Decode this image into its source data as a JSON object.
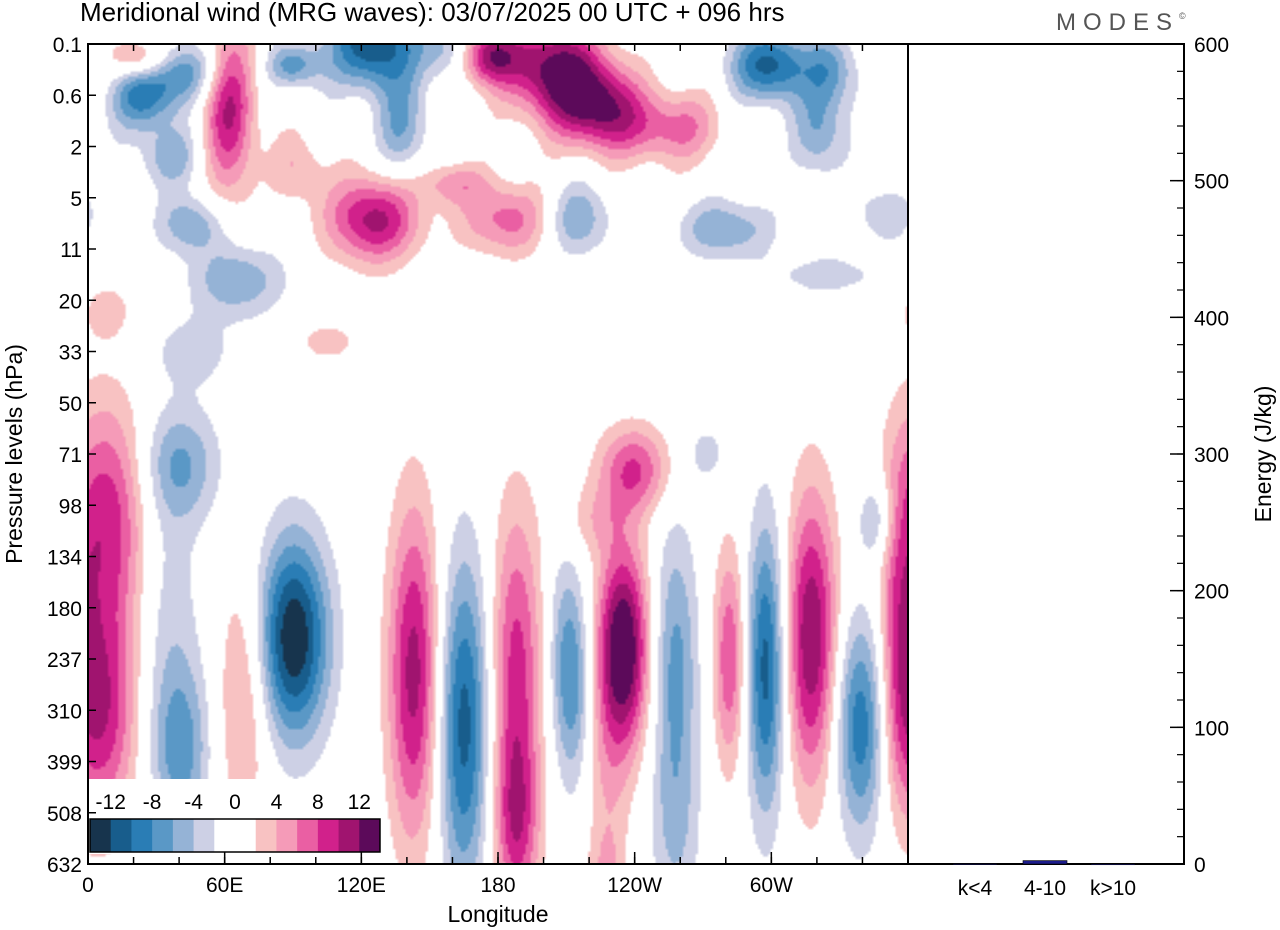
{
  "title": "Meridional wind (MRG waves):  03/07/2025  00 UTC  + 096 hrs",
  "logo": "MODES",
  "colors": {
    "neg": [
      "#17344d",
      "#185d8c",
      "#2a7db5",
      "#5a98c6",
      "#95b3d6",
      "#cdd0e5"
    ],
    "zero": "#ffffff",
    "pos": [
      "#f8c2c2",
      "#f59bb8",
      "#ea5fa3",
      "#d1218b",
      "#a0146f",
      "#5c0a5a"
    ],
    "bar": "#1c1c8c"
  },
  "chart_data": [
    {
      "type": "heatmap",
      "title": "Meridional wind (MRG waves)",
      "xlabel": "Longitude",
      "ylabel": "Pressure levels (hPa)",
      "x_ticks": [
        "0",
        "60E",
        "120E",
        "180",
        "120W",
        "60W"
      ],
      "x_tick_lon": [
        0,
        60,
        120,
        180,
        240,
        300
      ],
      "xlim": [
        0,
        360
      ],
      "y_ticks": [
        "0.1",
        "0.6",
        "2",
        "5",
        "11",
        "20",
        "33",
        "50",
        "71",
        "98",
        "134",
        "180",
        "237",
        "310",
        "399",
        "508",
        "632"
      ],
      "colorbar": {
        "labels": [
          "-12",
          "-8",
          "-4",
          "0",
          "4",
          "8",
          "12"
        ],
        "label_values": [
          -12,
          -8,
          -4,
          0,
          4,
          8,
          12
        ],
        "levels": [
          -14,
          -12,
          -10,
          -8,
          -6,
          -4,
          -2,
          2,
          4,
          6,
          8,
          10,
          12,
          14
        ]
      },
      "blobs": [
        {
          "lon": 40,
          "lev": 0.5,
          "v": -7,
          "wl": 12,
          "wv": 0.4
        },
        {
          "lon": 24,
          "lev": 1.0,
          "v": -9,
          "wl": 10,
          "wv": 0.5
        },
        {
          "lon": 62,
          "lev": 1.3,
          "v": 10,
          "wl": 8,
          "wv": 1.2
        },
        {
          "lon": 125,
          "lev": 0.0,
          "v": -12,
          "wl": 14,
          "wv": 0.6
        },
        {
          "lon": 138,
          "lev": 1.6,
          "v": -6,
          "wl": 8,
          "wv": 0.7
        },
        {
          "lon": 160,
          "lev": 0.1,
          "v": -6,
          "wl": 9,
          "wv": 0.4
        },
        {
          "lon": 205,
          "lev": 0.5,
          "v": 13,
          "wl": 14,
          "wv": 0.7
        },
        {
          "lon": 225,
          "lev": 1.2,
          "v": 11,
          "wl": 12,
          "wv": 0.6
        },
        {
          "lon": 175,
          "lev": 0.2,
          "v": 12,
          "wl": 10,
          "wv": 0.4
        },
        {
          "lon": 255,
          "lev": 1.6,
          "v": 7,
          "wl": 16,
          "wv": 0.5
        },
        {
          "lon": 300,
          "lev": 0.4,
          "v": -11,
          "wl": 12,
          "wv": 0.5
        },
        {
          "lon": 327,
          "lev": 0.5,
          "v": -6,
          "wl": 8,
          "wv": 0.5
        },
        {
          "lon": 322,
          "lev": 1.7,
          "v": -6,
          "wl": 8,
          "wv": 0.6
        },
        {
          "lon": 36,
          "lev": 2.2,
          "v": -5,
          "wl": 10,
          "wv": 0.4
        },
        {
          "lon": 23,
          "lev": 0.3,
          "v": 8,
          "wl": 9,
          "wv": 0.3
        },
        {
          "lon": 90,
          "lev": 0.4,
          "v": -7,
          "wl": 8,
          "wv": 0.3
        },
        {
          "lon": 92,
          "lev": 2.4,
          "v": 4,
          "wl": 8,
          "wv": 0.5
        },
        {
          "lon": 125,
          "lev": 3.4,
          "v": 11,
          "wl": 14,
          "wv": 0.6
        },
        {
          "lon": 160,
          "lev": 2.7,
          "v": 5,
          "wl": 10,
          "wv": 0.3
        },
        {
          "lon": 184,
          "lev": 3.4,
          "v": 7,
          "wl": 14,
          "wv": 0.5
        },
        {
          "lon": 215,
          "lev": 3.4,
          "v": -6,
          "wl": 10,
          "wv": 0.5
        },
        {
          "lon": 280,
          "lev": 3.6,
          "v": -6,
          "wl": 14,
          "wv": 0.4
        },
        {
          "lon": 65,
          "lev": 4.6,
          "v": -6,
          "wl": 14,
          "wv": 0.5
        },
        {
          "lon": 45,
          "lev": 3.5,
          "v": -6,
          "wl": 10,
          "wv": 0.4
        },
        {
          "lon": 350,
          "lev": 3.3,
          "v": -4,
          "wl": 8,
          "wv": 0.4
        },
        {
          "lon": 325,
          "lev": 4.5,
          "v": -3,
          "wl": 20,
          "wv": 0.3
        },
        {
          "lon": 8,
          "lev": 5.2,
          "v": 3,
          "wl": 8,
          "wv": 0.4
        },
        {
          "lon": 105,
          "lev": 5.8,
          "v": 3,
          "wl": 10,
          "wv": 0.3
        },
        {
          "lon": 45,
          "lev": 6.0,
          "v": -3,
          "wl": 14,
          "wv": 0.5
        },
        {
          "lon": 40,
          "lev": 8.2,
          "v": -6,
          "wl": 12,
          "wv": 0.8
        },
        {
          "lon": 240,
          "lev": 8.3,
          "v": 8,
          "wl": 11,
          "wv": 0.6
        },
        {
          "lon": 222,
          "lev": 9.3,
          "v": 3,
          "wl": 10,
          "wv": 0.5
        },
        {
          "lon": 272,
          "lev": 8.0,
          "v": -3,
          "wl": 6,
          "wv": 0.4
        },
        {
          "lon": 8,
          "lev": 9.2,
          "v": 9,
          "wl": 12,
          "wv": 1.6
        },
        {
          "lon": 5,
          "lev": 13.0,
          "v": 10,
          "wl": 11,
          "wv": 1.6
        },
        {
          "lon": 40,
          "lev": 13.8,
          "v": -7,
          "wl": 9,
          "wv": 1.2
        },
        {
          "lon": 35,
          "lev": 11.0,
          "v": -3,
          "wl": 10,
          "wv": 1.8
        },
        {
          "lon": 68,
          "lev": 12.8,
          "v": 5,
          "wl": 8,
          "wv": 1.8
        },
        {
          "lon": 90,
          "lev": 11.6,
          "v": -14,
          "wl": 11,
          "wv": 1.4
        },
        {
          "lon": 143,
          "lev": 12.3,
          "v": 11,
          "wl": 8,
          "wv": 2.3
        },
        {
          "lon": 165,
          "lev": 13.3,
          "v": -11,
          "wl": 8,
          "wv": 2.3
        },
        {
          "lon": 188,
          "lev": 12.3,
          "v": 9,
          "wl": 8,
          "wv": 2.3
        },
        {
          "lon": 188,
          "lev": 15.3,
          "v": 7,
          "wl": 7,
          "wv": 1.2
        },
        {
          "lon": 208,
          "lev": 12.0,
          "v": -4,
          "wl": 5,
          "wv": 1.5
        },
        {
          "lon": 214,
          "lev": 12.5,
          "v": -6,
          "wl": 5,
          "wv": 1.4
        },
        {
          "lon": 235,
          "lev": 11.8,
          "v": 15,
          "wl": 8,
          "wv": 1.4
        },
        {
          "lon": 228,
          "lev": 14.5,
          "v": 3,
          "wl": 7,
          "wv": 1.5
        },
        {
          "lon": 258,
          "lev": 12.3,
          "v": -7,
          "wl": 7,
          "wv": 2.0
        },
        {
          "lon": 282,
          "lev": 12.0,
          "v": 8,
          "wl": 5,
          "wv": 1.5
        },
        {
          "lon": 298,
          "lev": 12.2,
          "v": -11,
          "wl": 6,
          "wv": 2.0
        },
        {
          "lon": 318,
          "lev": 11.6,
          "v": 12,
          "wl": 8,
          "wv": 2.0
        },
        {
          "lon": 340,
          "lev": 13.3,
          "v": -10,
          "wl": 8,
          "wv": 1.5
        },
        {
          "lon": 347,
          "lev": 9.3,
          "v": -5,
          "wl": 6,
          "wv": 0.6
        },
        {
          "lon": 356,
          "lev": 11.3,
          "v": 4,
          "wl": 5,
          "wv": 2.0
        },
        {
          "lon": 258,
          "lev": 15.5,
          "v": -3,
          "wl": 8,
          "wv": 1.2
        },
        {
          "lon": 228,
          "lev": 16.2,
          "v": 3,
          "wl": 6,
          "wv": 0.6
        }
      ]
    },
    {
      "type": "bar",
      "ylabel": "Energy (J/kg)",
      "categories": [
        "k<4",
        "4-10",
        "k>10"
      ],
      "values": [
        0.3,
        2.5,
        0.2
      ],
      "ylim": [
        0,
        600
      ],
      "y_ticks": [
        "0",
        "100",
        "200",
        "300",
        "400",
        "500",
        "600"
      ],
      "y_tick_values": [
        0,
        100,
        200,
        300,
        400,
        500,
        600
      ]
    }
  ]
}
